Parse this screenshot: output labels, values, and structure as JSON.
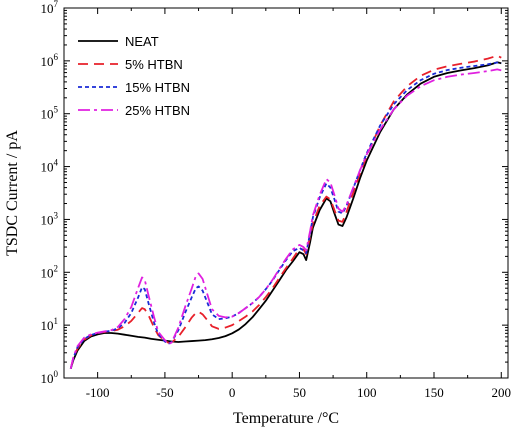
{
  "chart_data": {
    "type": "line",
    "xlabel": "Temperature /°C",
    "ylabel": "TSDC Current / pA",
    "xlim": [
      -125,
      205
    ],
    "ylim": [
      1,
      10000000
    ],
    "yscale": "log",
    "x_ticks": [
      -100,
      -50,
      0,
      50,
      100,
      150,
      200
    ],
    "x_tick_labels": [
      "-100",
      "-50",
      "0",
      "50",
      "100",
      "150",
      "200"
    ],
    "y_ticks": [
      1,
      10,
      100,
      1000,
      10000,
      100000,
      1000000,
      10000000
    ],
    "y_tick_labels": [
      {
        "base": "10",
        "exp": "0"
      },
      {
        "base": "10",
        "exp": "1"
      },
      {
        "base": "10",
        "exp": "2"
      },
      {
        "base": "10",
        "exp": "3"
      },
      {
        "base": "10",
        "exp": "4"
      },
      {
        "base": "10",
        "exp": "5"
      },
      {
        "base": "10",
        "exp": "6"
      },
      {
        "base": "10",
        "exp": "7"
      }
    ],
    "legend_position": "top-left",
    "grid": false,
    "series": [
      {
        "name": "NEAT",
        "color": "#000000",
        "dash": "solid",
        "x": [
          -120,
          -118,
          -115,
          -110,
          -105,
          -100,
          -95,
          -90,
          -85,
          -80,
          -75,
          -70,
          -65,
          -60,
          -55,
          -50,
          -45,
          -40,
          -35,
          -30,
          -25,
          -20,
          -15,
          -10,
          -5,
          0,
          5,
          10,
          15,
          20,
          25,
          30,
          35,
          40,
          45,
          50,
          53,
          55,
          58,
          60,
          65,
          70,
          73,
          76,
          79,
          82,
          85,
          90,
          95,
          100,
          110,
          120,
          130,
          140,
          150,
          160,
          170,
          180,
          190,
          197,
          200
        ],
        "y": [
          1.5,
          2.2,
          3.3,
          5,
          6.1,
          6.7,
          7.1,
          7.1,
          6.9,
          6.6,
          6.3,
          6,
          5.8,
          5.5,
          5.3,
          5.1,
          4.9,
          4.8,
          4.9,
          5,
          5.1,
          5.2,
          5.4,
          5.7,
          6.2,
          7,
          8.3,
          10.5,
          14,
          20,
          29,
          45,
          70,
          110,
          160,
          240,
          220,
          170,
          380,
          700,
          1500,
          2500,
          2200,
          1300,
          800,
          750,
          1100,
          2500,
          6000,
          13000,
          45000,
          120000,
          230000,
          370000,
          500000,
          590000,
          660000,
          730000,
          820000,
          940000,
          900000
        ]
      },
      {
        "name": "5% HTBN",
        "color": "#e8202a",
        "dash": "10,6",
        "x": [
          -120,
          -118,
          -115,
          -110,
          -105,
          -100,
          -95,
          -90,
          -85,
          -80,
          -75,
          -70,
          -67,
          -65,
          -62,
          -58,
          -55,
          -50,
          -47,
          -45,
          -40,
          -35,
          -30,
          -27,
          -25,
          -22,
          -18,
          -15,
          -10,
          -5,
          0,
          5,
          10,
          15,
          20,
          25,
          30,
          35,
          40,
          45,
          50,
          53,
          55,
          58,
          60,
          65,
          70,
          73,
          76,
          79,
          82,
          85,
          90,
          95,
          100,
          110,
          120,
          130,
          140,
          150,
          160,
          170,
          180,
          190,
          197,
          200
        ],
        "y": [
          1.5,
          2.4,
          3.6,
          5.3,
          6.4,
          7,
          7.4,
          7.7,
          8.2,
          9.5,
          12,
          17,
          21,
          20,
          15,
          9,
          6.5,
          5,
          4.6,
          4.7,
          6,
          9,
          14,
          17,
          18,
          16,
          12,
          9.5,
          8.5,
          9,
          10,
          12,
          14.5,
          18,
          24,
          34,
          50,
          78,
          120,
          180,
          280,
          270,
          220,
          480,
          850,
          1800,
          2700,
          2400,
          1500,
          950,
          900,
          1400,
          3200,
          7500,
          16000,
          60000,
          170000,
          330000,
          520000,
          680000,
          790000,
          880000,
          970000,
          1100000,
          1250000,
          1150000
        ]
      },
      {
        "name": "15% HTBN",
        "color": "#1a2bd6",
        "dash": "4,3",
        "x": [
          -120,
          -118,
          -115,
          -110,
          -105,
          -100,
          -95,
          -90,
          -85,
          -80,
          -75,
          -70,
          -67,
          -65,
          -62,
          -58,
          -55,
          -50,
          -47,
          -45,
          -40,
          -35,
          -30,
          -27,
          -25,
          -22,
          -18,
          -15,
          -10,
          -5,
          0,
          5,
          10,
          15,
          20,
          25,
          30,
          35,
          40,
          45,
          50,
          53,
          55,
          58,
          60,
          65,
          70,
          73,
          76,
          79,
          82,
          85,
          90,
          95,
          100,
          110,
          120,
          130,
          140,
          150,
          160,
          170,
          180,
          190,
          197,
          200
        ],
        "y": [
          1.5,
          2.4,
          3.8,
          5.5,
          6.5,
          7.1,
          7.5,
          7.8,
          8.7,
          11,
          17,
          33,
          52,
          48,
          25,
          11,
          6.8,
          4.9,
          4.5,
          4.8,
          8,
          17,
          34,
          50,
          54,
          45,
          25,
          16,
          13,
          13.5,
          14.5,
          17,
          21,
          26,
          34,
          48,
          70,
          110,
          170,
          250,
          290,
          260,
          230,
          560,
          1100,
          2600,
          4800,
          4000,
          2400,
          1400,
          1300,
          1800,
          3900,
          8500,
          18000,
          60000,
          150000,
          280000,
          430000,
          570000,
          670000,
          740000,
          800000,
          860000,
          930000,
          900000
        ]
      },
      {
        "name": "25% HTBN",
        "color": "#e020e0",
        "dash": "12,4,3,4",
        "x": [
          -120,
          -118,
          -115,
          -110,
          -105,
          -100,
          -95,
          -90,
          -85,
          -80,
          -75,
          -70,
          -67,
          -65,
          -62,
          -58,
          -55,
          -50,
          -47,
          -45,
          -40,
          -35,
          -30,
          -27,
          -25,
          -22,
          -18,
          -15,
          -10,
          -5,
          0,
          5,
          10,
          15,
          20,
          25,
          30,
          35,
          40,
          45,
          50,
          53,
          55,
          58,
          60,
          65,
          70,
          73,
          76,
          79,
          82,
          85,
          90,
          95,
          100,
          110,
          120,
          130,
          140,
          150,
          160,
          170,
          180,
          190,
          197,
          200
        ],
        "y": [
          1.5,
          2.5,
          4,
          5.8,
          6.7,
          7.2,
          7.6,
          8,
          9.2,
          13,
          22,
          50,
          80,
          72,
          35,
          14,
          7.5,
          5.2,
          4.4,
          4.7,
          9,
          22,
          50,
          85,
          95,
          75,
          35,
          20,
          15,
          14,
          14.5,
          17,
          21,
          26,
          34,
          48,
          72,
          115,
          180,
          270,
          330,
          300,
          260,
          620,
          1200,
          2900,
          5800,
          5000,
          2900,
          1600,
          1400,
          1900,
          4000,
          8500,
          17000,
          50000,
          120000,
          220000,
          330000,
          430000,
          500000,
          550000,
          590000,
          640000,
          690000,
          660000
        ]
      }
    ]
  }
}
